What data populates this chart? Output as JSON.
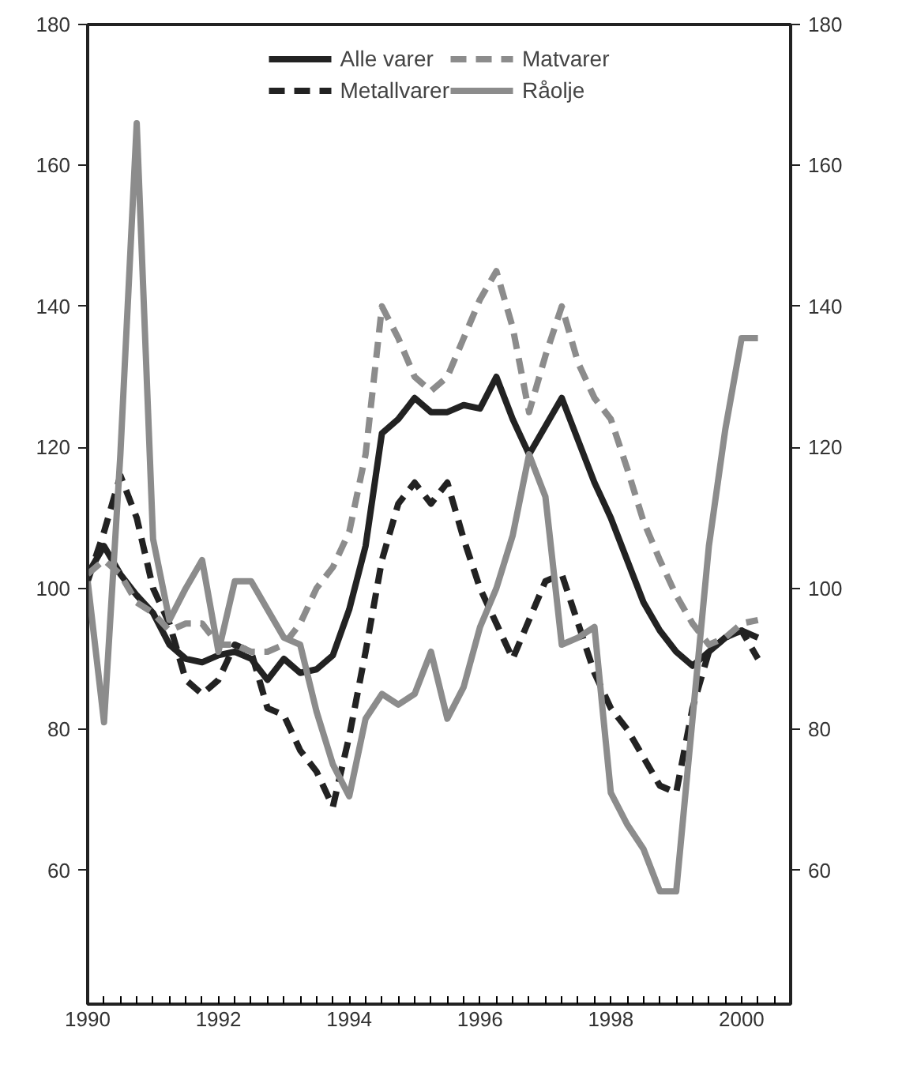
{
  "chart_data": {
    "type": "line",
    "x": [
      1990.0,
      1990.25,
      1990.5,
      1990.75,
      1991.0,
      1991.25,
      1991.5,
      1991.75,
      1992.0,
      1992.25,
      1992.5,
      1992.75,
      1993.0,
      1993.25,
      1993.5,
      1993.75,
      1994.0,
      1994.25,
      1994.5,
      1994.75,
      1995.0,
      1995.25,
      1995.5,
      1995.75,
      1996.0,
      1996.25,
      1996.5,
      1996.75,
      1997.0,
      1997.25,
      1997.5,
      1997.75,
      1998.0,
      1998.25,
      1998.5,
      1998.75,
      1999.0,
      1999.25,
      1999.5,
      1999.75,
      2000.0,
      2000.25
    ],
    "series": [
      {
        "name": "Alle varer",
        "color": "#222222",
        "line_style": "solid",
        "values": [
          102,
          106,
          102,
          99,
          96.5,
          92,
          90,
          89.5,
          90.5,
          91,
          90,
          87,
          90,
          88,
          88.5,
          90.5,
          97,
          106,
          122,
          124,
          127,
          125,
          125,
          126,
          125.5,
          130,
          124,
          119,
          123,
          127,
          121,
          115,
          110,
          104,
          98,
          94,
          91,
          89,
          91,
          93,
          94,
          93
        ]
      },
      {
        "name": "Metallvarer",
        "color": "#222222",
        "line_style": "dashed",
        "values": [
          101,
          108,
          116,
          110,
          100,
          95,
          87,
          85,
          87,
          92,
          91,
          83,
          82,
          77,
          74,
          69,
          79,
          91,
          104,
          112,
          115,
          112,
          115,
          107,
          100,
          95,
          90,
          95.5,
          101,
          102,
          95,
          88,
          83,
          80,
          76,
          72,
          71,
          83,
          91,
          93,
          94,
          90
        ]
      },
      {
        "name": "Matvarer",
        "color": "#8c8c8c",
        "line_style": "dashed",
        "values": [
          102,
          104,
          102,
          98,
          96.5,
          94,
          95,
          95,
          92,
          92,
          91,
          91,
          92,
          95,
          100,
          103,
          108,
          119,
          140,
          135.5,
          130,
          128,
          130,
          135.5,
          141,
          145,
          137,
          125,
          133,
          140,
          132,
          127,
          124,
          117,
          109.5,
          104,
          99,
          95,
          92,
          93,
          95,
          95.5
        ]
      },
      {
        "name": "Råolje",
        "color": "#8c8c8c",
        "line_style": "solid",
        "values": [
          101,
          81,
          119,
          166,
          107,
          95.5,
          100,
          104,
          91,
          101,
          101,
          97,
          93,
          92,
          82.5,
          75,
          70.5,
          81.5,
          85,
          83.5,
          85,
          91,
          81.5,
          86,
          94.5,
          100,
          107.5,
          119,
          113,
          92,
          93,
          94.5,
          71,
          66.5,
          63,
          57,
          57,
          81.5,
          106,
          122.5,
          135.5,
          135.5
        ]
      }
    ],
    "xlim": [
      1990,
      2000.75
    ],
    "xticks": [
      1990,
      1992,
      1994,
      1996,
      1998,
      2000
    ],
    "ylim": [
      41,
      180
    ],
    "yticks": [
      60,
      80,
      100,
      120,
      140,
      160,
      180
    ],
    "y2lim": [
      41,
      180
    ],
    "y2ticks": [
      60,
      80,
      100,
      120,
      140,
      160,
      180
    ],
    "grid": false,
    "legend": "top"
  }
}
